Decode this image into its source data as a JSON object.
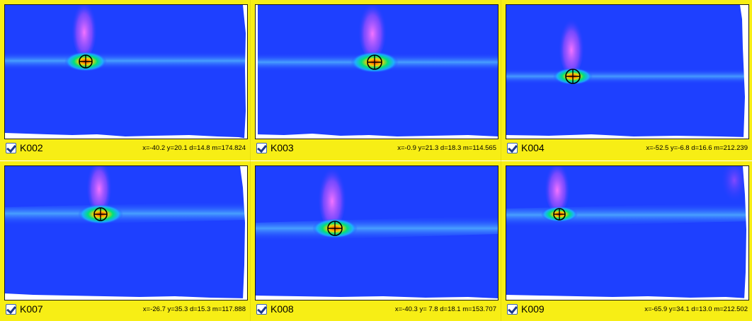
{
  "tiles": [
    {
      "label": "K002",
      "stats": "x=-40.2 y=20.1 d=14.8 m=174.824",
      "checked": true
    },
    {
      "label": "K003",
      "stats": "x=-0.9 y=21.3 d=18.3 m=114.565",
      "checked": true
    },
    {
      "label": "K004",
      "stats": "x=-52.5 y=-6.8 d=16.6 m=212.239",
      "checked": true
    },
    {
      "label": "K007",
      "stats": "x=-26.7 y=35.3 d=15.3 m=117.888",
      "checked": true
    },
    {
      "label": "K008",
      "stats": "x=-40.3 y= 7.8 d=18.1 m=153.707",
      "checked": true
    },
    {
      "label": "K009",
      "stats": "x=-65.9 y=34.1 d=13.0 m=212.502",
      "checked": true
    }
  ],
  "colors": {
    "panel_background": "#f7ee15",
    "beam_background": "#1e40ff",
    "beam_line": "#4fb0ff",
    "spot_core": "#ff3b00",
    "spot_mid": "#ffd400",
    "spot_outer": "#00e07a",
    "plume": "#ff66ff"
  },
  "icons": {
    "marker": "crosshair-circle-icon",
    "checkbox": "checkmark-icon"
  }
}
